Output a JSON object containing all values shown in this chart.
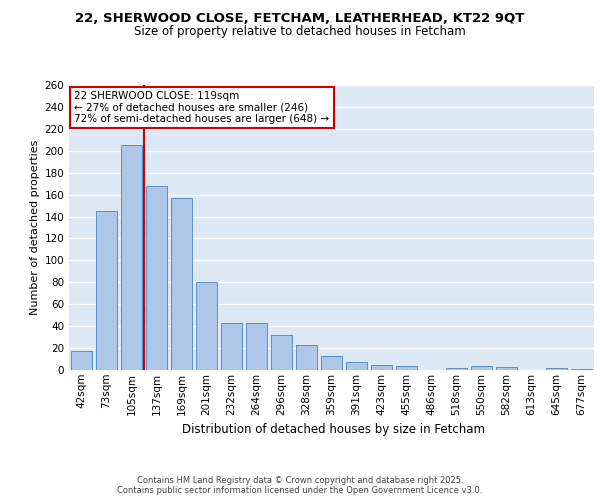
{
  "title1": "22, SHERWOOD CLOSE, FETCHAM, LEATHERHEAD, KT22 9QT",
  "title2": "Size of property relative to detached houses in Fetcham",
  "xlabel": "Distribution of detached houses by size in Fetcham",
  "ylabel": "Number of detached properties",
  "categories": [
    "42sqm",
    "73sqm",
    "105sqm",
    "137sqm",
    "169sqm",
    "201sqm",
    "232sqm",
    "264sqm",
    "296sqm",
    "328sqm",
    "359sqm",
    "391sqm",
    "423sqm",
    "455sqm",
    "486sqm",
    "518sqm",
    "550sqm",
    "582sqm",
    "613sqm",
    "645sqm",
    "677sqm"
  ],
  "values": [
    17,
    145,
    205,
    168,
    157,
    80,
    43,
    43,
    32,
    23,
    13,
    7,
    5,
    4,
    0,
    2,
    4,
    3,
    0,
    2,
    1
  ],
  "bar_color": "#aec6e8",
  "bar_edge_color": "#5b8fc9",
  "background_color": "#dde8f5",
  "grid_color": "#ffffff",
  "annotation_box_text": "22 SHERWOOD CLOSE: 119sqm\n← 27% of detached houses are smaller (246)\n72% of semi-detached houses are larger (648) →",
  "annotation_box_color": "#ffffff",
  "annotation_box_edge_color": "#cc0000",
  "vline_color": "#cc0000",
  "footer_text": "Contains HM Land Registry data © Crown copyright and database right 2025.\nContains public sector information licensed under the Open Government Licence v3.0.",
  "ylim": [
    0,
    260
  ],
  "yticks": [
    0,
    20,
    40,
    60,
    80,
    100,
    120,
    140,
    160,
    180,
    200,
    220,
    240,
    260
  ],
  "title1_fontsize": 9.5,
  "title2_fontsize": 8.5,
  "ylabel_fontsize": 8,
  "xlabel_fontsize": 8.5,
  "tick_fontsize": 7.5,
  "footer_fontsize": 6,
  "ann_fontsize": 7.5
}
